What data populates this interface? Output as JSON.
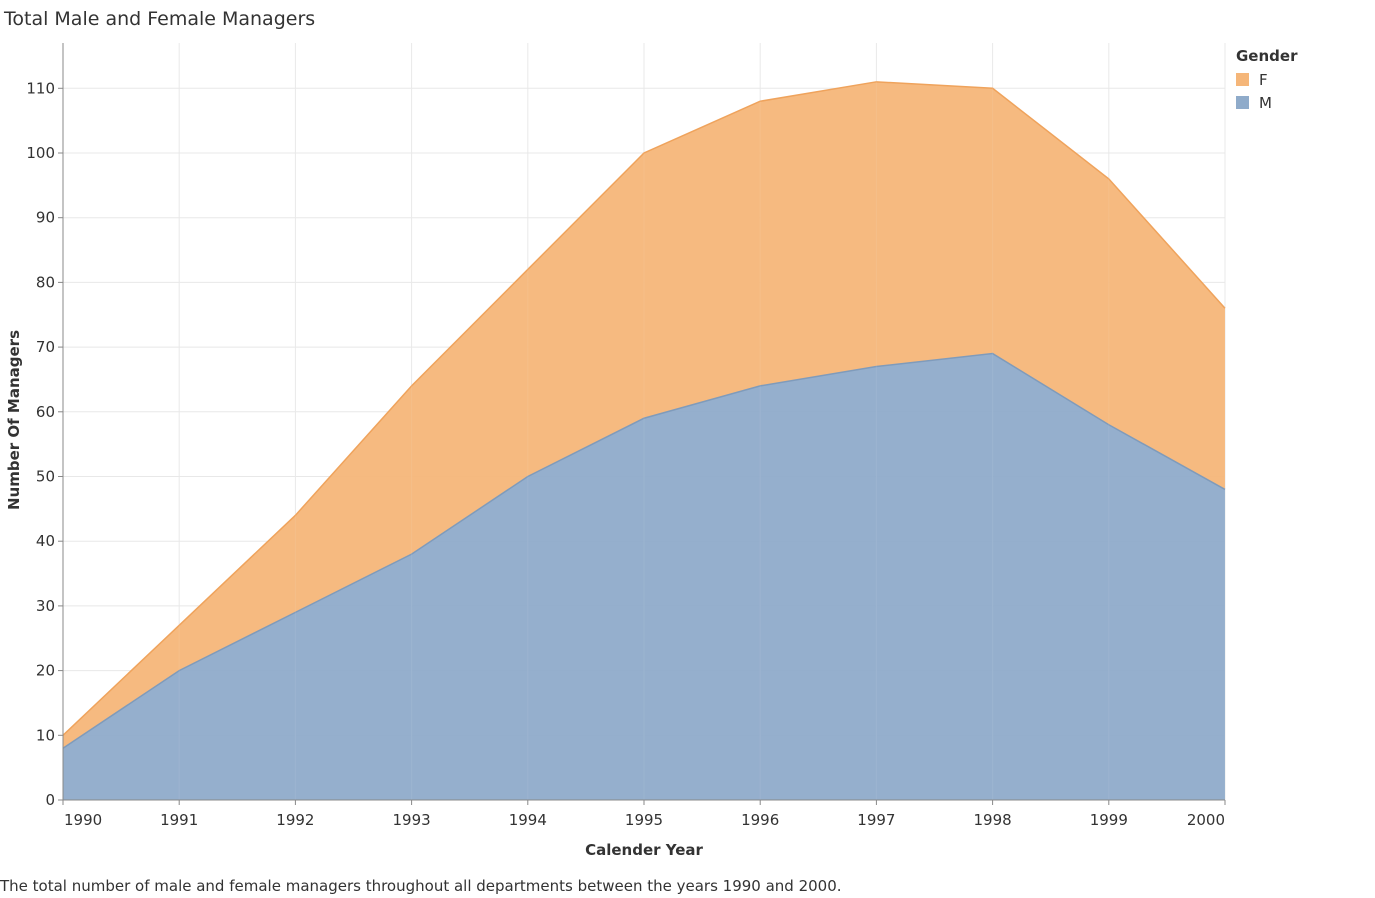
{
  "title": "Total Male and Female Managers",
  "caption": "The total number of male and female managers throughout all departments between the years 1990 and 2000.",
  "chart_data": {
    "type": "area",
    "stacked": true,
    "title": "Total Male and Female Managers",
    "xlabel": "Calender Year",
    "ylabel": "Number Of Managers",
    "x": [
      "1990",
      "1991",
      "1992",
      "1993",
      "1994",
      "1995",
      "1996",
      "1997",
      "1998",
      "1999",
      "2000"
    ],
    "ylim": [
      0,
      117
    ],
    "yticks": [
      "0",
      "10",
      "20",
      "30",
      "40",
      "50",
      "60",
      "70",
      "80",
      "90",
      "100",
      "110"
    ],
    "grid": true,
    "legend": {
      "title": "Gender",
      "position": "top-right"
    },
    "series": [
      {
        "name": "M",
        "color": "#8FABCA",
        "values": [
          8,
          20,
          29,
          38,
          50,
          59,
          64,
          67,
          69,
          58,
          48
        ]
      },
      {
        "name": "F",
        "color": "#F5B679",
        "values": [
          2,
          7,
          15,
          26,
          32,
          41,
          44,
          44,
          41,
          38,
          28
        ]
      }
    ]
  }
}
